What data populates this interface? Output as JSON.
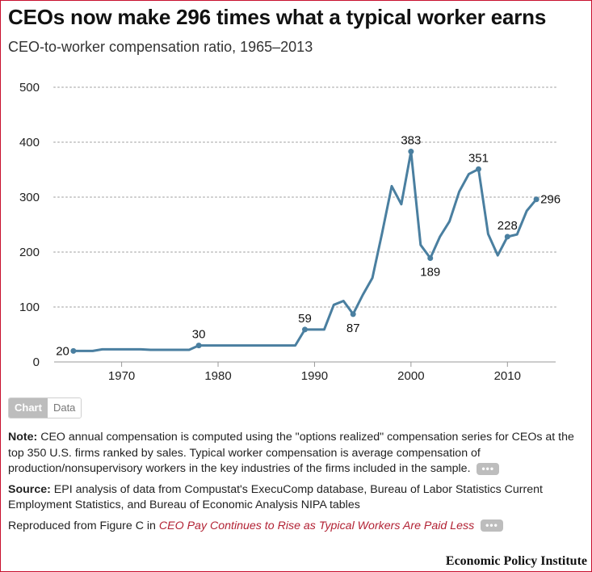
{
  "title": "CEOs now make 296 times what a typical worker earns",
  "subtitle": "CEO-to-worker compensation ratio, 1965–2013",
  "toggle": {
    "chart_label": "Chart",
    "data_label": "Data"
  },
  "notes": {
    "note_label": "Note:",
    "note_text": "CEO annual compensation is computed using the \"options realized\" compensation series for CEOs at the top 350 U.S. firms ranked by sales. Typical worker compensation is average compensation of production/nonsupervisory workers in the key industries of the firms included in the sample.",
    "source_label": "Source:",
    "source_text": "EPI analysis of data from Compustat's ExecuComp database, Bureau of Labor Statistics Current Employment Statistics, and Bureau of Economic Analysis NIPA tables",
    "reproduced_prefix": "Reproduced from Figure C in",
    "reproduced_link": "CEO Pay Continues to Rise as Typical Workers Are Paid Less",
    "more_label": "•••"
  },
  "brand": "Economic Policy Institute",
  "colors": {
    "line": "#4a7fa0",
    "grid": "#cccccc",
    "axis": "#999999",
    "frame": "#c8102e"
  },
  "chart_data": {
    "type": "line",
    "title": "CEOs now make 296 times what a typical worker earns",
    "subtitle": "CEO-to-worker compensation ratio, 1965–2013",
    "xlabel": "",
    "ylabel": "",
    "xlim": [
      1963,
      2015
    ],
    "ylim": [
      0,
      500
    ],
    "yticks": [
      0,
      100,
      200,
      300,
      400,
      500
    ],
    "xticks": [
      1970,
      1980,
      1990,
      2000,
      2010
    ],
    "grid": "horizontal-dotted",
    "series": [
      {
        "name": "CEO-to-worker compensation ratio",
        "x": [
          1965,
          1966,
          1967,
          1968,
          1969,
          1970,
          1971,
          1972,
          1973,
          1974,
          1975,
          1976,
          1977,
          1978,
          1979,
          1980,
          1981,
          1982,
          1983,
          1984,
          1985,
          1986,
          1987,
          1988,
          1989,
          1990,
          1991,
          1992,
          1993,
          1994,
          1995,
          1996,
          1997,
          1998,
          1999,
          2000,
          2001,
          2002,
          2003,
          2004,
          2005,
          2006,
          2007,
          2008,
          2009,
          2010,
          2011,
          2012,
          2013
        ],
        "values": [
          20,
          20,
          20,
          23,
          23,
          23,
          23,
          23,
          22,
          22,
          22,
          22,
          22,
          30,
          30,
          30,
          30,
          30,
          30,
          30,
          30,
          30,
          30,
          30,
          59,
          59,
          59,
          104,
          111,
          87,
          122,
          153,
          234,
          320,
          287,
          383,
          213,
          189,
          228,
          256,
          310,
          342,
          351,
          233,
          194,
          228,
          232,
          275,
          296
        ]
      }
    ],
    "annotations": [
      {
        "x": 1965,
        "value": 20,
        "label": "20",
        "position": "left"
      },
      {
        "x": 1978,
        "value": 30,
        "label": "30",
        "position": "above"
      },
      {
        "x": 1989,
        "value": 59,
        "label": "59",
        "position": "above"
      },
      {
        "x": 1994,
        "value": 87,
        "label": "87",
        "position": "below"
      },
      {
        "x": 2000,
        "value": 383,
        "label": "383",
        "position": "above"
      },
      {
        "x": 2002,
        "value": 189,
        "label": "189",
        "position": "below"
      },
      {
        "x": 2007,
        "value": 351,
        "label": "351",
        "position": "above"
      },
      {
        "x": 2010,
        "value": 228,
        "label": "228",
        "position": "above"
      },
      {
        "x": 2013,
        "value": 296,
        "label": "296",
        "position": "right"
      }
    ]
  }
}
